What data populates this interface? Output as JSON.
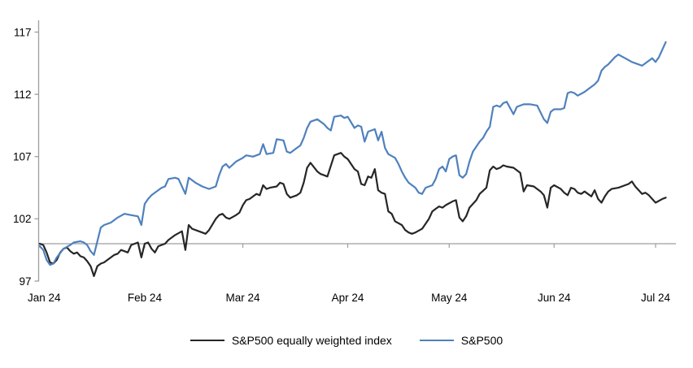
{
  "chart_data": {
    "type": "line",
    "title": "",
    "x_axis": {
      "unit": "days-since-2024-01-01",
      "tick_labels": [
        "Jan 24",
        "Feb 24",
        "Mar 24",
        "Apr 24",
        "May 24",
        "Jun 24",
        "Jul 24"
      ],
      "tick_days": [
        0,
        31,
        60,
        91,
        121,
        152,
        182
      ],
      "span_days": 185
    },
    "y_axis": {
      "ticks": [
        97,
        102,
        107,
        112,
        117
      ],
      "min": 97,
      "max": 118,
      "baseline": 100
    },
    "grid": "baseline-only",
    "legend_position": "bottom-center",
    "colors": {
      "axis": "#9e9e9e",
      "baseline": "#9e9e9e",
      "text": "#000000"
    },
    "series": [
      {
        "name": "S&P500 equally weighted index",
        "color": "#262626",
        "points": [
          [
            0,
            100.0
          ],
          [
            1,
            99.9
          ],
          [
            2,
            99.3
          ],
          [
            3,
            98.5
          ],
          [
            4,
            98.4
          ],
          [
            5,
            98.7
          ],
          [
            6,
            99.3
          ],
          [
            7,
            99.6
          ],
          [
            8,
            99.7
          ],
          [
            9,
            99.4
          ],
          [
            10,
            99.2
          ],
          [
            11,
            99.3
          ],
          [
            12,
            99.0
          ],
          [
            13,
            98.9
          ],
          [
            14,
            98.6
          ],
          [
            15,
            98.2
          ],
          [
            16,
            97.4
          ],
          [
            17,
            98.2
          ],
          [
            18,
            98.4
          ],
          [
            19,
            98.5
          ],
          [
            20,
            98.7
          ],
          [
            21,
            98.9
          ],
          [
            22,
            99.1
          ],
          [
            23,
            99.2
          ],
          [
            24,
            99.5
          ],
          [
            25,
            99.4
          ],
          [
            26,
            99.3
          ],
          [
            27,
            99.9
          ],
          [
            29,
            100.1
          ],
          [
            30,
            98.9
          ],
          [
            31,
            100.0
          ],
          [
            32,
            100.1
          ],
          [
            33,
            99.6
          ],
          [
            34,
            99.3
          ],
          [
            35,
            99.8
          ],
          [
            37,
            100.0
          ],
          [
            38,
            100.3
          ],
          [
            39,
            100.5
          ],
          [
            40,
            100.7
          ],
          [
            42,
            101.0
          ],
          [
            43,
            99.5
          ],
          [
            44,
            101.5
          ],
          [
            45,
            101.2
          ],
          [
            47,
            101.0
          ],
          [
            48,
            100.9
          ],
          [
            49,
            100.8
          ],
          [
            50,
            101.1
          ],
          [
            52,
            102.0
          ],
          [
            53,
            102.3
          ],
          [
            54,
            102.4
          ],
          [
            55,
            102.1
          ],
          [
            56,
            102.0
          ],
          [
            58,
            102.3
          ],
          [
            59,
            102.5
          ],
          [
            60,
            103.1
          ],
          [
            61,
            103.5
          ],
          [
            62,
            103.6
          ],
          [
            64,
            104.0
          ],
          [
            65,
            103.9
          ],
          [
            66,
            104.7
          ],
          [
            67,
            104.4
          ],
          [
            68,
            104.5
          ],
          [
            70,
            104.6
          ],
          [
            71,
            104.9
          ],
          [
            72,
            104.8
          ],
          [
            73,
            104.0
          ],
          [
            74,
            103.7
          ],
          [
            75,
            103.8
          ],
          [
            76,
            103.9
          ],
          [
            77,
            104.1
          ],
          [
            78,
            104.9
          ],
          [
            79,
            106.1
          ],
          [
            80,
            106.5
          ],
          [
            82,
            105.8
          ],
          [
            83,
            105.6
          ],
          [
            84,
            105.5
          ],
          [
            85,
            105.4
          ],
          [
            87,
            107.1
          ],
          [
            88,
            107.2
          ],
          [
            89,
            107.3
          ],
          [
            90,
            107.0
          ],
          [
            91,
            106.8
          ],
          [
            93,
            106.0
          ],
          [
            94,
            105.8
          ],
          [
            95,
            104.8
          ],
          [
            96,
            104.7
          ],
          [
            97,
            105.4
          ],
          [
            98,
            105.3
          ],
          [
            99,
            106.0
          ],
          [
            100,
            104.3
          ],
          [
            101,
            104.1
          ],
          [
            102,
            104.0
          ],
          [
            103,
            102.6
          ],
          [
            104,
            102.4
          ],
          [
            105,
            101.8
          ],
          [
            107,
            101.5
          ],
          [
            108,
            101.1
          ],
          [
            109,
            100.9
          ],
          [
            110,
            100.8
          ],
          [
            111,
            100.9
          ],
          [
            113,
            101.2
          ],
          [
            114,
            101.6
          ],
          [
            115,
            102.0
          ],
          [
            116,
            102.6
          ],
          [
            117,
            102.8
          ],
          [
            118,
            103.0
          ],
          [
            119,
            102.9
          ],
          [
            120,
            103.1
          ],
          [
            122,
            103.4
          ],
          [
            123,
            103.5
          ],
          [
            124,
            102.1
          ],
          [
            125,
            101.8
          ],
          [
            126,
            102.2
          ],
          [
            127,
            102.9
          ],
          [
            128,
            103.2
          ],
          [
            129,
            103.5
          ],
          [
            130,
            104.0
          ],
          [
            132,
            104.5
          ],
          [
            133,
            105.9
          ],
          [
            134,
            106.2
          ],
          [
            135,
            106.0
          ],
          [
            136,
            106.1
          ],
          [
            137,
            106.3
          ],
          [
            138,
            106.2
          ],
          [
            140,
            106.1
          ],
          [
            142,
            105.7
          ],
          [
            143,
            104.2
          ],
          [
            144,
            104.7
          ],
          [
            146,
            104.6
          ],
          [
            147,
            104.4
          ],
          [
            148,
            104.2
          ],
          [
            149,
            103.9
          ],
          [
            150,
            102.9
          ],
          [
            151,
            104.5
          ],
          [
            152,
            104.7
          ],
          [
            154,
            104.4
          ],
          [
            155,
            104.1
          ],
          [
            156,
            103.9
          ],
          [
            157,
            104.5
          ],
          [
            158,
            104.4
          ],
          [
            159,
            104.1
          ],
          [
            160,
            104.0
          ],
          [
            161,
            104.2
          ],
          [
            162,
            104.0
          ],
          [
            163,
            103.8
          ],
          [
            164,
            104.3
          ],
          [
            165,
            103.6
          ],
          [
            166,
            103.3
          ],
          [
            167,
            103.8
          ],
          [
            168,
            104.2
          ],
          [
            169,
            104.4
          ],
          [
            171,
            104.5
          ],
          [
            173,
            104.7
          ],
          [
            174,
            104.8
          ],
          [
            175,
            105.0
          ],
          [
            176,
            104.6
          ],
          [
            177,
            104.3
          ],
          [
            178,
            104.0
          ],
          [
            179,
            104.1
          ],
          [
            180,
            103.9
          ],
          [
            181,
            103.6
          ],
          [
            182,
            103.3
          ],
          [
            184,
            103.6
          ],
          [
            185,
            103.7
          ]
        ]
      },
      {
        "name": "S&P500",
        "color": "#4f81bd",
        "points": [
          [
            0,
            99.8
          ],
          [
            1,
            99.5
          ],
          [
            2,
            98.7
          ],
          [
            3,
            98.3
          ],
          [
            4,
            98.4
          ],
          [
            5,
            98.9
          ],
          [
            7,
            99.6
          ],
          [
            9,
            99.9
          ],
          [
            10,
            100.1
          ],
          [
            12,
            100.2
          ],
          [
            13,
            100.1
          ],
          [
            14,
            99.9
          ],
          [
            15,
            99.4
          ],
          [
            16,
            99.1
          ],
          [
            17,
            100.2
          ],
          [
            18,
            101.3
          ],
          [
            19,
            101.5
          ],
          [
            21,
            101.7
          ],
          [
            23,
            102.1
          ],
          [
            25,
            102.4
          ],
          [
            27,
            102.3
          ],
          [
            29,
            102.2
          ],
          [
            30,
            101.5
          ],
          [
            31,
            103.2
          ],
          [
            32,
            103.6
          ],
          [
            33,
            103.9
          ],
          [
            35,
            104.3
          ],
          [
            36,
            104.5
          ],
          [
            37,
            104.6
          ],
          [
            38,
            105.2
          ],
          [
            40,
            105.3
          ],
          [
            41,
            105.2
          ],
          [
            43,
            104.0
          ],
          [
            44,
            105.3
          ],
          [
            46,
            104.9
          ],
          [
            48,
            104.6
          ],
          [
            50,
            104.4
          ],
          [
            52,
            104.6
          ],
          [
            53,
            105.5
          ],
          [
            54,
            106.2
          ],
          [
            55,
            106.4
          ],
          [
            56,
            106.1
          ],
          [
            58,
            106.6
          ],
          [
            60,
            106.9
          ],
          [
            61,
            107.1
          ],
          [
            63,
            107.0
          ],
          [
            65,
            107.2
          ],
          [
            66,
            108.0
          ],
          [
            67,
            107.2
          ],
          [
            69,
            107.3
          ],
          [
            70,
            108.4
          ],
          [
            72,
            108.3
          ],
          [
            73,
            107.4
          ],
          [
            74,
            107.3
          ],
          [
            76,
            107.7
          ],
          [
            77,
            107.9
          ],
          [
            78,
            108.5
          ],
          [
            79,
            109.3
          ],
          [
            80,
            109.8
          ],
          [
            82,
            110.0
          ],
          [
            83,
            109.8
          ],
          [
            84,
            109.6
          ],
          [
            85,
            109.3
          ],
          [
            86,
            109.1
          ],
          [
            87,
            110.2
          ],
          [
            89,
            110.3
          ],
          [
            90,
            110.1
          ],
          [
            91,
            110.2
          ],
          [
            93,
            109.3
          ],
          [
            94,
            109.5
          ],
          [
            95,
            109.4
          ],
          [
            96,
            108.2
          ],
          [
            97,
            109.0
          ],
          [
            99,
            109.2
          ],
          [
            100,
            108.3
          ],
          [
            101,
            109.0
          ],
          [
            102,
            107.7
          ],
          [
            103,
            107.2
          ],
          [
            105,
            106.9
          ],
          [
            106,
            106.4
          ],
          [
            107,
            105.8
          ],
          [
            108,
            105.3
          ],
          [
            109,
            104.9
          ],
          [
            111,
            104.5
          ],
          [
            112,
            104.1
          ],
          [
            113,
            104.0
          ],
          [
            114,
            104.5
          ],
          [
            116,
            104.7
          ],
          [
            117,
            105.2
          ],
          [
            118,
            106.0
          ],
          [
            119,
            106.2
          ],
          [
            120,
            105.8
          ],
          [
            121,
            106.8
          ],
          [
            122,
            107.0
          ],
          [
            123,
            107.1
          ],
          [
            124,
            105.5
          ],
          [
            125,
            105.3
          ],
          [
            126,
            105.6
          ],
          [
            127,
            106.6
          ],
          [
            128,
            107.4
          ],
          [
            129,
            107.8
          ],
          [
            130,
            108.2
          ],
          [
            131,
            108.5
          ],
          [
            132,
            109.0
          ],
          [
            133,
            109.4
          ],
          [
            134,
            111.0
          ],
          [
            135,
            111.1
          ],
          [
            136,
            111.0
          ],
          [
            137,
            111.3
          ],
          [
            138,
            111.4
          ],
          [
            140,
            110.4
          ],
          [
            141,
            111.0
          ],
          [
            143,
            111.2
          ],
          [
            145,
            111.2
          ],
          [
            147,
            111.1
          ],
          [
            149,
            110.0
          ],
          [
            150,
            109.7
          ],
          [
            151,
            110.6
          ],
          [
            152,
            110.8
          ],
          [
            154,
            110.8
          ],
          [
            155,
            110.9
          ],
          [
            156,
            112.1
          ],
          [
            157,
            112.2
          ],
          [
            158,
            112.1
          ],
          [
            159,
            111.9
          ],
          [
            161,
            112.2
          ],
          [
            162,
            112.4
          ],
          [
            163,
            112.6
          ],
          [
            164,
            112.8
          ],
          [
            165,
            113.1
          ],
          [
            166,
            113.9
          ],
          [
            167,
            114.2
          ],
          [
            168,
            114.4
          ],
          [
            170,
            115.0
          ],
          [
            171,
            115.2
          ],
          [
            173,
            114.9
          ],
          [
            175,
            114.6
          ],
          [
            177,
            114.4
          ],
          [
            178,
            114.3
          ],
          [
            180,
            114.7
          ],
          [
            181,
            114.9
          ],
          [
            182,
            114.6
          ],
          [
            183,
            115.0
          ],
          [
            185,
            116.2
          ]
        ]
      }
    ]
  },
  "legend": {
    "items": [
      {
        "label": "S&P500 equally weighted index"
      },
      {
        "label": "S&P500"
      }
    ]
  }
}
